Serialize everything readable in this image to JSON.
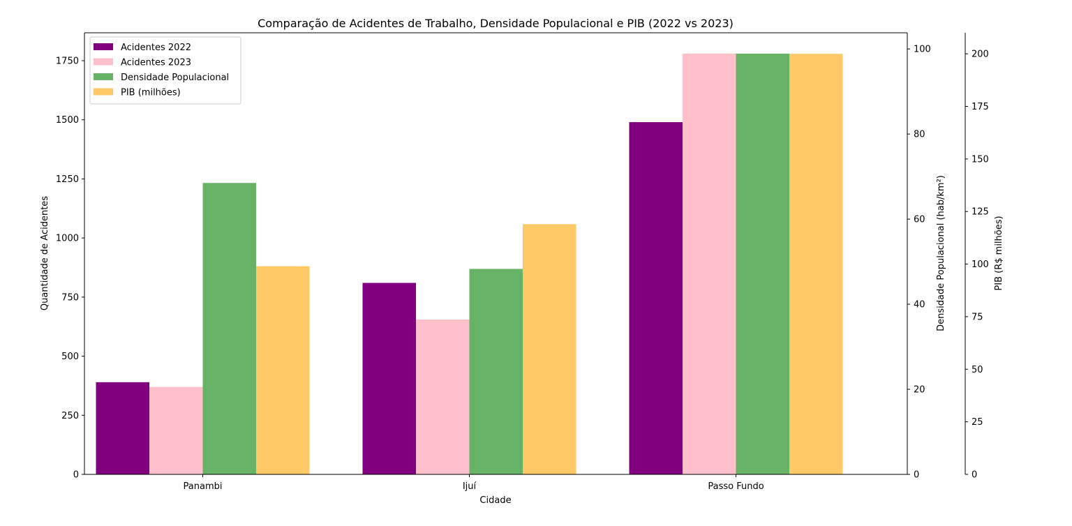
{
  "chart_data": {
    "type": "bar",
    "title": "Comparação de Acidentes de Trabalho, Densidade Populacional e PIB (2022 vs 2023)",
    "xlabel": "Cidade",
    "categories": [
      "Panambi",
      "Ijuí",
      "Passo Fundo"
    ],
    "axes": {
      "left": {
        "label": "Quantidade de Acidentes",
        "ylim": [
          0,
          1868
        ],
        "ticks": [
          0,
          250,
          500,
          750,
          1000,
          1250,
          1500,
          1750
        ]
      },
      "right1": {
        "label": "Densidade Populacional (hab/km²)",
        "ylim": [
          0,
          103.8
        ],
        "ticks": [
          0,
          20,
          40,
          60,
          80,
          100
        ]
      },
      "right2": {
        "label": "PIB (R$ milhões)",
        "ylim": [
          0,
          210
        ],
        "ticks": [
          0,
          25,
          50,
          75,
          100,
          125,
          150,
          175,
          200
        ]
      }
    },
    "series": [
      {
        "name": "Acidentes 2022",
        "axis": "left",
        "color": "#800080",
        "values": [
          390,
          810,
          1490
        ]
      },
      {
        "name": "Acidentes 2023",
        "axis": "left",
        "color": "#ffc0cb",
        "values": [
          370,
          655,
          1780
        ]
      },
      {
        "name": "Densidade Populacional",
        "axis": "right1",
        "color": "#66b266",
        "values": [
          68.5,
          48.3,
          98.9
        ]
      },
      {
        "name": "PIB (milhões)",
        "axis": "right2",
        "color": "#fec966",
        "values": [
          99,
          119,
          200
        ]
      }
    ],
    "legend_position": "top-left",
    "grid": false
  }
}
